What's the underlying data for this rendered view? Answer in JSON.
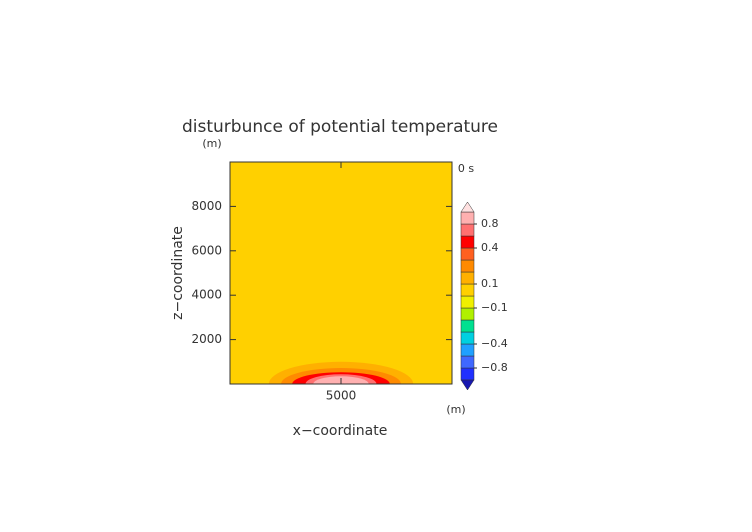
{
  "chart_data": {
    "type": "contour",
    "title": "disturbunce of potential temperature",
    "xlabel": "x−coordinate",
    "ylabel": "z−coordinate",
    "x_unit": "(m)",
    "y_unit": "(m)",
    "time": "0 s",
    "xlim": [
      0,
      10000
    ],
    "ylim": [
      0,
      10000
    ],
    "xticks": [
      5000
    ],
    "yticks": [
      2000,
      4000,
      6000,
      8000
    ],
    "background_level": 0,
    "regions": [
      {
        "level": 0.1,
        "x": 5000,
        "rx": 3250,
        "ry": 1000
      },
      {
        "level": 0.2,
        "x": 5000,
        "rx": 2700,
        "ry": 720
      },
      {
        "level": 0.4,
        "x": 5000,
        "rx": 2200,
        "ry": 530
      },
      {
        "level": 0.6,
        "x": 5000,
        "rx": 1600,
        "ry": 440
      },
      {
        "level": 0.8,
        "x": 5000,
        "rx": 1250,
        "ry": 350
      }
    ],
    "colorbar": {
      "levels": [
        -1,
        -0.8,
        -0.6,
        -0.4,
        -0.3,
        -0.2,
        -0.1,
        0,
        0.1,
        0.2,
        0.3,
        0.4,
        0.6,
        0.8,
        1
      ],
      "colors": [
        "#1818b0",
        "#2030ff",
        "#4068ff",
        "#20a0ff",
        "#00d0e0",
        "#00e090",
        "#b0f000",
        "#f0f000",
        "#ffd000",
        "#ffb000",
        "#ff8a00",
        "#ff6020",
        "#ff0000",
        "#ff7070",
        "#ffb0b0",
        "#ffe0e0"
      ],
      "labels": [
        0.8,
        0.4,
        0.1,
        {
          "value": -0.1,
          "label": "−0.1"
        },
        {
          "value": -0.4,
          "label": "−0.4"
        },
        {
          "value": -0.8,
          "label": "−0.8"
        }
      ]
    }
  }
}
